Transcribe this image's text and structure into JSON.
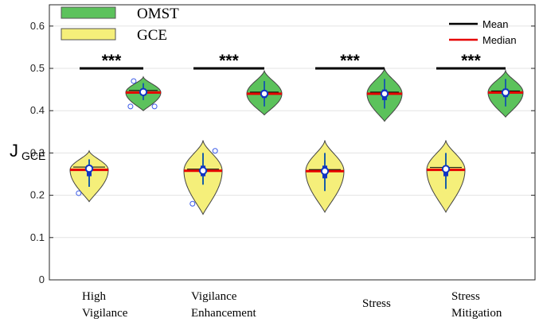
{
  "chart_data": {
    "type": "violin",
    "ylabel_main": "J",
    "ylabel_sub": "GCE",
    "ylim": [
      0,
      0.65
    ],
    "yticks": [
      "0",
      "0.1",
      "0.2",
      "0.3",
      "0.4",
      "0.5",
      "0.6"
    ],
    "ytick_values": [
      0,
      0.1,
      0.2,
      0.3,
      0.4,
      0.5,
      0.6
    ],
    "grid": true,
    "categories": [
      {
        "line1": "High",
        "line2": "Vigilance"
      },
      {
        "line1": "Vigilance",
        "line2": "Enhancement"
      },
      {
        "line1": "Stress",
        "line2": ""
      },
      {
        "line1": "Stress",
        "line2": "Mitigation"
      }
    ],
    "legend_groups": [
      {
        "name": "OMST",
        "color": "#5cc25c"
      },
      {
        "name": "GCE",
        "color": "#f5ef7a"
      }
    ],
    "legend_stats": [
      {
        "name": "Mean",
        "color": "#000000"
      },
      {
        "name": "Median",
        "color": "#e60000"
      }
    ],
    "significance": "***",
    "significance_y": 0.5,
    "series": [
      {
        "name": "GCE",
        "color": "#f5ef7a",
        "violins": [
          {
            "min": 0.185,
            "max": 0.305,
            "median": 0.26,
            "mean": 0.263,
            "q1": 0.245,
            "q3": 0.27,
            "whisker_low": 0.22,
            "whisker_high": 0.285,
            "outliers": [
              0.205
            ]
          },
          {
            "min": 0.155,
            "max": 0.33,
            "median": 0.258,
            "mean": 0.258,
            "q1": 0.245,
            "q3": 0.27,
            "whisker_low": 0.225,
            "whisker_high": 0.3,
            "outliers": [
              0.18,
              0.305
            ]
          },
          {
            "min": 0.16,
            "max": 0.33,
            "median": 0.257,
            "mean": 0.257,
            "q1": 0.24,
            "q3": 0.27,
            "whisker_low": 0.21,
            "whisker_high": 0.3,
            "outliers": []
          },
          {
            "min": 0.16,
            "max": 0.33,
            "median": 0.26,
            "mean": 0.262,
            "q1": 0.245,
            "q3": 0.27,
            "whisker_low": 0.215,
            "whisker_high": 0.3,
            "outliers": []
          }
        ]
      },
      {
        "name": "OMST",
        "color": "#5cc25c",
        "violins": [
          {
            "min": 0.4,
            "max": 0.48,
            "median": 0.443,
            "mean": 0.444,
            "q1": 0.438,
            "q3": 0.452,
            "whisker_low": 0.425,
            "whisker_high": 0.465,
            "outliers": [
              0.47,
              0.41,
              0.41
            ]
          },
          {
            "min": 0.39,
            "max": 0.495,
            "median": 0.44,
            "mean": 0.44,
            "q1": 0.43,
            "q3": 0.448,
            "whisker_low": 0.41,
            "whisker_high": 0.47,
            "outliers": []
          },
          {
            "min": 0.375,
            "max": 0.5,
            "median": 0.44,
            "mean": 0.44,
            "q1": 0.425,
            "q3": 0.45,
            "whisker_low": 0.405,
            "whisker_high": 0.475,
            "outliers": []
          },
          {
            "min": 0.385,
            "max": 0.495,
            "median": 0.443,
            "mean": 0.443,
            "q1": 0.432,
            "q3": 0.452,
            "whisker_low": 0.41,
            "whisker_high": 0.475,
            "outliers": []
          }
        ]
      }
    ]
  }
}
